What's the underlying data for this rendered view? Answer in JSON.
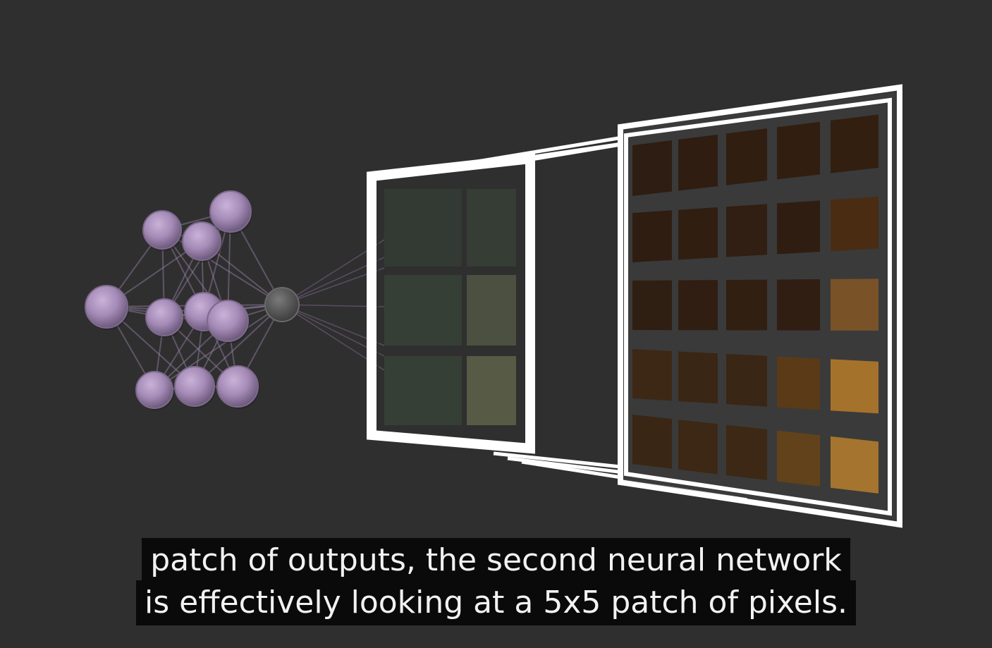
{
  "captions": {
    "line1": "patch of outputs, the second neural network",
    "line2": "is effectively looking at a 5x5 patch of pixels."
  },
  "colors": {
    "background": "#2f2f2f",
    "neuron": "#a58bb7",
    "neuron_output": "#5a5a5a",
    "frame": "#ffffff",
    "caption_bg": "#0a0a0a",
    "caption_text": "#f2f2f2"
  },
  "pixel_patch": {
    "rows": 5,
    "cols": 5,
    "colors": [
      [
        "#2e1d12",
        "#2f1d11",
        "#301e11",
        "#311e10",
        "#321f10"
      ],
      [
        "#2f1d12",
        "#301e11",
        "#301f12",
        "#2f1d11",
        "#4a2c13"
      ],
      [
        "#2f1e12",
        "#301e12",
        "#311f12",
        "#311e12",
        "#7a5228"
      ],
      [
        "#3d2815",
        "#3a2614",
        "#3a2614",
        "#5a3a17",
        "#a5722c"
      ],
      [
        "#3a2614",
        "#3c2815",
        "#3c2815",
        "#62421a",
        "#a5742e"
      ]
    ]
  },
  "output_patch": {
    "rows": 3,
    "cols": 2,
    "colors": [
      [
        "#323a33",
        "#353d35"
      ],
      [
        "#363f36",
        "#4b5040"
      ],
      [
        "#363f36",
        "#575a44"
      ]
    ]
  }
}
